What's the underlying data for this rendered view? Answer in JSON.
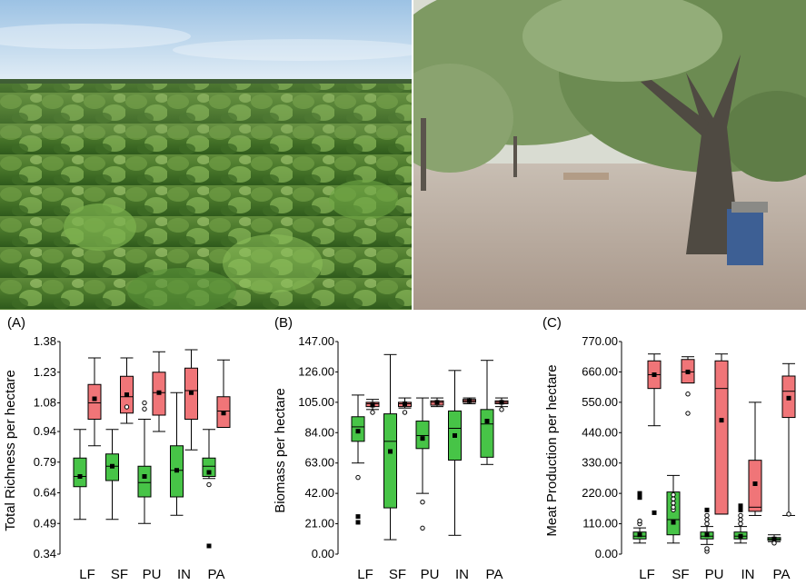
{
  "photos": [
    {
      "name": "sunflower-field-photo"
    },
    {
      "name": "park-trees-photo"
    }
  ],
  "colors": {
    "green": "#47c447",
    "red": "#f07578",
    "line": "#000000"
  },
  "chart_data": [
    {
      "type": "box",
      "panel_label": "(A)",
      "ylabel": "Total Richness per hectare",
      "ylim": [
        0.34,
        1.38
      ],
      "yticks": [
        "1.38",
        "1.23",
        "1.08",
        "0.94",
        "0.79",
        "0.64",
        "0.49",
        "0.34"
      ],
      "yticks_values": [
        1.38,
        1.23,
        1.08,
        0.94,
        0.79,
        0.64,
        0.49,
        0.34
      ],
      "categories": [
        "LF",
        "SF",
        "PU",
        "IN",
        "PA"
      ],
      "series": [
        {
          "color": "green",
          "boxes": [
            {
              "whisker_low": 0.51,
              "q1": 0.67,
              "median": 0.72,
              "q3": 0.81,
              "whisker_high": 0.95,
              "mean": 0.72,
              "outliers": []
            },
            {
              "whisker_low": 0.51,
              "q1": 0.7,
              "median": 0.77,
              "q3": 0.83,
              "whisker_high": 0.95,
              "mean": 0.77,
              "outliers": []
            },
            {
              "whisker_low": 0.49,
              "q1": 0.62,
              "median": 0.69,
              "q3": 0.77,
              "whisker_high": 1.0,
              "mean": 0.72,
              "outliers": [
                1.05,
                1.08
              ]
            },
            {
              "whisker_low": 0.53,
              "q1": 0.62,
              "median": 0.75,
              "q3": 0.87,
              "whisker_high": 1.13,
              "mean": 0.75,
              "outliers": []
            },
            {
              "whisker_low": 0.71,
              "q1": 0.72,
              "median": 0.77,
              "q3": 0.81,
              "whisker_high": 0.95,
              "mean": 0.74,
              "outliers": [
                0.68,
                0.38
              ]
            }
          ]
        },
        {
          "color": "red",
          "boxes": [
            {
              "whisker_low": 0.87,
              "q1": 1.0,
              "median": 1.08,
              "q3": 1.17,
              "whisker_high": 1.3,
              "mean": 1.1,
              "outliers": []
            },
            {
              "whisker_low": 0.98,
              "q1": 1.03,
              "median": 1.11,
              "q3": 1.21,
              "whisker_high": 1.3,
              "mean": 1.12,
              "outliers": [
                1.06
              ]
            },
            {
              "whisker_low": 0.94,
              "q1": 1.02,
              "median": 1.13,
              "q3": 1.23,
              "whisker_high": 1.33,
              "mean": 1.13,
              "outliers": []
            },
            {
              "whisker_low": 0.85,
              "q1": 1.0,
              "median": 1.14,
              "q3": 1.25,
              "whisker_high": 1.34,
              "mean": 1.13,
              "outliers": []
            },
            {
              "whisker_low": 0.96,
              "q1": 0.96,
              "median": 1.04,
              "q3": 1.11,
              "whisker_high": 1.29,
              "mean": 1.03,
              "outliers": []
            }
          ]
        }
      ]
    },
    {
      "type": "box",
      "panel_label": "(B)",
      "ylabel": "Biomass per hectare",
      "ylim": [
        0,
        147
      ],
      "yticks": [
        "147.00",
        "126.00",
        "105.00",
        "84.00",
        "63.00",
        "42.00",
        "21.00",
        "0.00"
      ],
      "yticks_values": [
        147,
        126,
        105,
        84,
        63,
        42,
        21,
        0
      ],
      "categories": [
        "LF",
        "SF",
        "PU",
        "IN",
        "PA"
      ],
      "series": [
        {
          "color": "green",
          "boxes": [
            {
              "whisker_low": 63,
              "q1": 78,
              "median": 88,
              "q3": 95,
              "whisker_high": 110,
              "mean": 85,
              "outliers": [
                53,
                26,
                22
              ]
            },
            {
              "whisker_low": 10,
              "q1": 32,
              "median": 78,
              "q3": 97,
              "whisker_high": 138,
              "mean": 71,
              "outliers": []
            },
            {
              "whisker_low": 42,
              "q1": 73,
              "median": 82,
              "q3": 92,
              "whisker_high": 108,
              "mean": 80,
              "outliers": [
                36,
                18
              ]
            },
            {
              "whisker_low": 13,
              "q1": 65,
              "median": 87,
              "q3": 99,
              "whisker_high": 127,
              "mean": 82,
              "outliers": []
            },
            {
              "whisker_low": 62,
              "q1": 67,
              "median": 90,
              "q3": 100,
              "whisker_high": 134,
              "mean": 92,
              "outliers": []
            }
          ]
        },
        {
          "color": "red",
          "boxes": [
            {
              "whisker_low": 100,
              "q1": 102,
              "median": 104,
              "q3": 105,
              "whisker_high": 107,
              "mean": 103,
              "outliers": [
                98
              ]
            },
            {
              "whisker_low": 101,
              "q1": 102,
              "median": 104,
              "q3": 105,
              "whisker_high": 108,
              "mean": 104,
              "outliers": [
                98
              ]
            },
            {
              "whisker_low": 102,
              "q1": 103,
              "median": 105,
              "q3": 106,
              "whisker_high": 108,
              "mean": 105,
              "outliers": []
            },
            {
              "whisker_low": 104,
              "q1": 105,
              "median": 106,
              "q3": 107,
              "whisker_high": 108,
              "mean": 106,
              "outliers": []
            },
            {
              "whisker_low": 102,
              "q1": 104,
              "median": 105,
              "q3": 106,
              "whisker_high": 108,
              "mean": 105,
              "outliers": [
                100
              ]
            }
          ]
        }
      ]
    },
    {
      "type": "box",
      "panel_label": "(C)",
      "ylabel": "Meat Production per hectare",
      "ylim": [
        0,
        770
      ],
      "yticks": [
        "770.00",
        "660.00",
        "550.00",
        "440.00",
        "330.00",
        "220.00",
        "110.00",
        "0.00"
      ],
      "yticks_values": [
        770,
        660,
        550,
        440,
        330,
        220,
        110,
        0
      ],
      "categories": [
        "LF",
        "SF",
        "PU",
        "IN",
        "PA"
      ],
      "series": [
        {
          "color": "green",
          "boxes": [
            {
              "whisker_low": 40,
              "q1": 55,
              "median": 65,
              "q3": 80,
              "whisker_high": 95,
              "mean": 70,
              "outliers": [
                110,
                120,
                205,
                220
              ]
            },
            {
              "whisker_low": 40,
              "q1": 70,
              "median": 125,
              "q3": 225,
              "whisker_high": 285,
              "mean": 115,
              "outliers": [
                160,
                170,
                185,
                200,
                215
              ]
            },
            {
              "whisker_low": 35,
              "q1": 55,
              "median": 65,
              "q3": 80,
              "whisker_high": 100,
              "mean": 70,
              "outliers": [
                10,
                20,
                110,
                125,
                140,
                160
              ]
            },
            {
              "whisker_low": 40,
              "q1": 55,
              "median": 65,
              "q3": 80,
              "whisker_high": 100,
              "mean": 65,
              "outliers": [
                110,
                125,
                140,
                160,
                175
              ]
            },
            {
              "whisker_low": 45,
              "q1": 50,
              "median": 55,
              "q3": 60,
              "whisker_high": 70,
              "mean": 55,
              "outliers": [
                40
              ]
            }
          ]
        },
        {
          "color": "red",
          "boxes": [
            {
              "whisker_low": 465,
              "q1": 600,
              "median": 650,
              "q3": 700,
              "whisker_high": 725,
              "mean": 650,
              "outliers": [
                150
              ]
            },
            {
              "whisker_low": 620,
              "q1": 620,
              "median": 660,
              "q3": 705,
              "whisker_high": 715,
              "mean": 660,
              "outliers": [
                580,
                510
              ]
            },
            {
              "whisker_low": 145,
              "q1": 145,
              "median": 600,
              "q3": 700,
              "whisker_high": 725,
              "mean": 485,
              "outliers": []
            },
            {
              "whisker_low": 140,
              "q1": 155,
              "median": 170,
              "q3": 340,
              "whisker_high": 550,
              "mean": 255,
              "outliers": []
            },
            {
              "whisker_low": 140,
              "q1": 495,
              "median": 590,
              "q3": 645,
              "whisker_high": 690,
              "mean": 565,
              "outliers": [
                145
              ]
            }
          ]
        }
      ]
    }
  ]
}
